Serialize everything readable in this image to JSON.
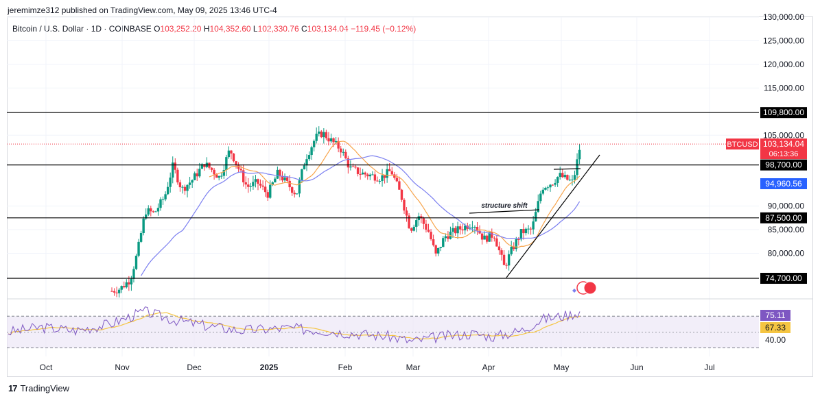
{
  "publisher_line": "jeremimze312 published on TradingView.com, May 09, 2025 13:46 UTC-4",
  "legend": {
    "symbol": "Bitcoin / U.S. Dollar · 1D · COINBASE",
    "o_label": "O",
    "o": "103,252.20",
    "h_label": "H",
    "h": "104,352.60",
    "l_label": "L",
    "l": "102,330.76",
    "c_label": "C",
    "c": "103,134.04",
    "change": "−119.45 (−0.12%)"
  },
  "brand": "TradingView",
  "colors": {
    "up": "#089981",
    "down": "#f23645",
    "ma_fast": "#f7a44b",
    "ma_slow": "#7b7ff0",
    "rsi": "#7e57c2",
    "rsi_ma": "#f5c542"
  },
  "chart_data": {
    "type": "candlestick",
    "price_axis": {
      "ticks": [
        80000,
        85000,
        90000,
        105000,
        115000,
        120000,
        125000,
        130000
      ],
      "tick_labels": [
        "80,000.00",
        "85,000.00",
        "90,000.00",
        "105,000.00",
        "115,000.00",
        "120,000.00",
        "125,000.00",
        "130,000.00"
      ],
      "ylim": [
        71000,
        130500
      ]
    },
    "time_axis": {
      "labels": [
        "Oct",
        "Nov",
        "Dec",
        "2025",
        "Feb",
        "Mar",
        "Apr",
        "May",
        "Jun",
        "Jul"
      ]
    },
    "horizontal_levels": [
      {
        "value": 109800,
        "label": "109,800.00"
      },
      {
        "value": 98700,
        "label": "98,700.00"
      },
      {
        "value": 87500,
        "label": "87,500.00"
      },
      {
        "value": 74700,
        "label": "74,700.00"
      }
    ],
    "last_price": {
      "symbol": "BTCUSD",
      "value": 103134.04,
      "label": "103,134.04",
      "countdown": "06:13:36"
    },
    "ma_value_label": "94,960.56",
    "annotation": "structure shift",
    "rsi": {
      "level_labels": [
        "40.00"
      ],
      "rsi_label": "75.11",
      "ma_label": "67.33",
      "upper_band": 70,
      "lower_band": 30,
      "ylim": [
        20,
        85
      ]
    }
  }
}
